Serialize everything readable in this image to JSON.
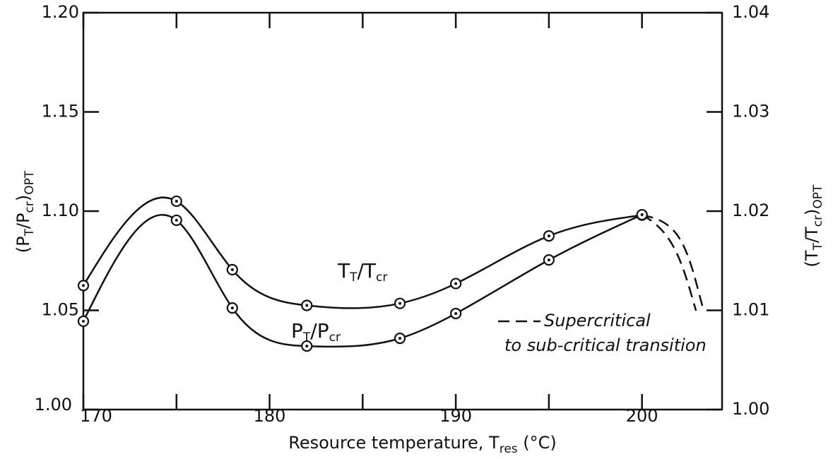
{
  "chart_data": {
    "type": "line",
    "xlim": [
      170,
      204.3
    ],
    "xticks": [
      170,
      180,
      190,
      200
    ],
    "xminor": [
      175,
      185,
      195
    ],
    "ylim": [
      1.0,
      1.2
    ],
    "yticks": [
      {
        "value": 1.0,
        "label": "1.00"
      },
      1.05,
      {
        "value": 1.1,
        "label": "1.10"
      },
      1.15,
      {
        "value": 1.2,
        "label": "1.20"
      }
    ],
    "y2lim": [
      1.0,
      1.04
    ],
    "y2ticks": [
      {
        "value": 1.0,
        "label": "1.00"
      },
      1.01,
      1.02,
      1.03,
      1.04
    ],
    "x_label": [
      "Resource  temperature, T",
      "res",
      " (°C)"
    ],
    "y_label": [
      "(P",
      "T",
      "/P",
      "cr",
      ")",
      "OPT"
    ],
    "y2_label": [
      "(T",
      "T",
      "/T",
      "cr",
      ")",
      "OPT"
    ],
    "series": [
      {
        "name": [
          "T",
          "T",
          "/T",
          "cr"
        ],
        "axis": "y2",
        "color": "#111111",
        "x": [
          170,
          175,
          178,
          182,
          187,
          190,
          195,
          200
        ],
        "values": [
          1.0125,
          1.021,
          1.0141,
          1.0105,
          1.0107,
          1.0127,
          1.0175,
          1.0196
        ],
        "extension": {
          "x": [
            200,
            201.5,
            202.5,
            203.3
          ],
          "values": [
            1.0196,
            1.0184,
            1.0153,
            1.01
          ]
        }
      },
      {
        "name": [
          "P",
          "T",
          "/P",
          "cr"
        ],
        "axis": "y",
        "color": "#111111",
        "x": [
          170,
          175,
          178,
          182,
          187,
          190,
          195,
          200
        ],
        "values": [
          1.0445,
          1.0954,
          1.0512,
          1.032,
          1.0359,
          1.0484,
          1.0754,
          1.0982
        ],
        "extension": {
          "x": [
            200,
            201.2,
            202.2,
            202.9
          ],
          "values": [
            1.0982,
            1.089,
            1.0712,
            1.0498
          ]
        }
      }
    ],
    "legend": {
      "line_style": "dashed",
      "text": [
        "Supercritical",
        "to sub-critical transition"
      ]
    }
  }
}
